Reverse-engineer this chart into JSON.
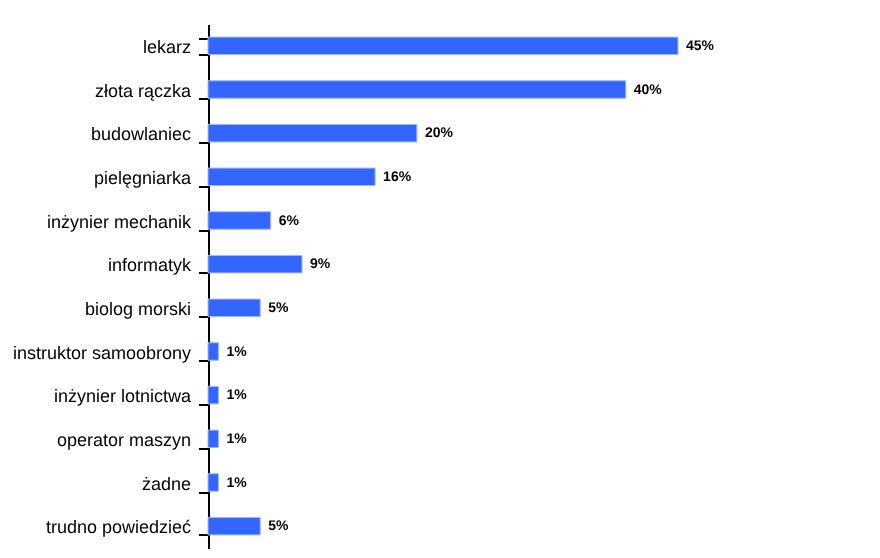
{
  "chart_data": {
    "type": "bar",
    "orientation": "horizontal",
    "categories": [
      "lekarz",
      "złota rączka",
      "budowlaniec",
      "pielęgniarka",
      "inżynier mechanik",
      "informatyk",
      "biolog morski",
      "instruktor samoobrony",
      "inżynier lotnictwa",
      "operator maszyn",
      "żadne",
      "trudno powiedzieć"
    ],
    "values": [
      45,
      40,
      20,
      16,
      6,
      9,
      5,
      1,
      1,
      1,
      1,
      5
    ],
    "value_labels": [
      "45%",
      "40%",
      "20%",
      "16%",
      "6%",
      "9%",
      "5%",
      "1%",
      "1%",
      "1%",
      "1%",
      "5%"
    ],
    "color": "#3366ff"
  }
}
